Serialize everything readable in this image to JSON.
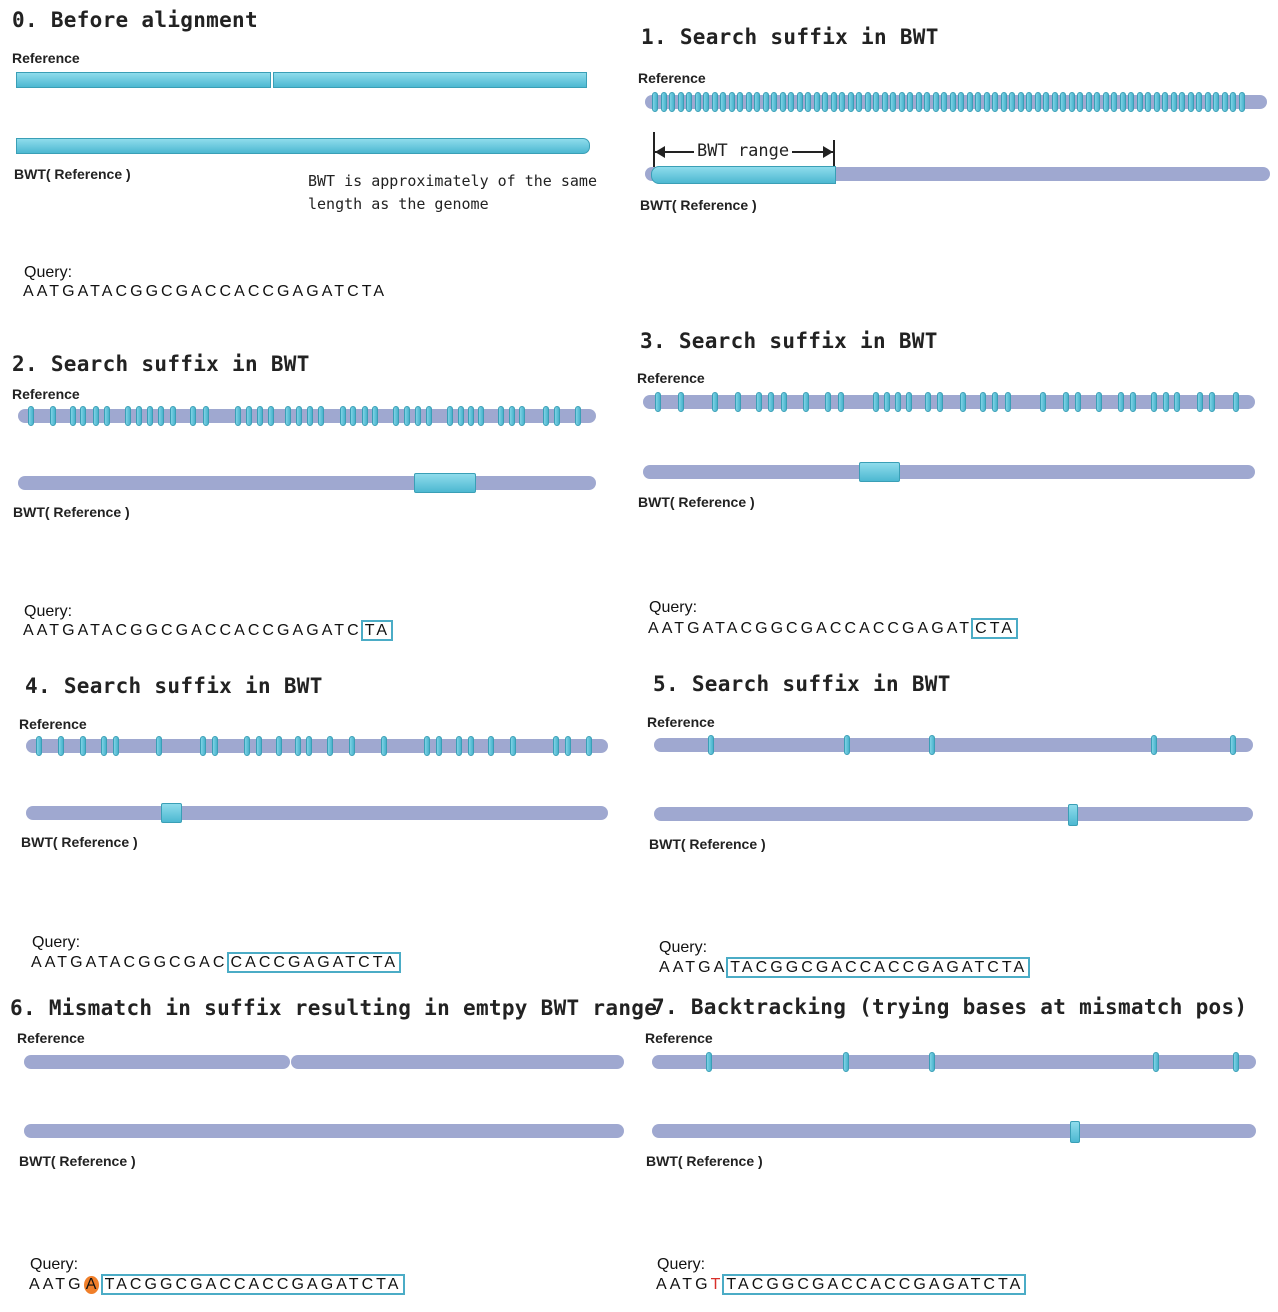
{
  "labels": {
    "reference": "Reference",
    "bwt": "BWT( Reference )",
    "query": "Query:"
  },
  "colors": {
    "bar": "#9fa8d0",
    "cyan": "#4db8d1",
    "box": "#4bacc6",
    "mismatch": "#d8302a",
    "highlight": "#f07f2a"
  },
  "panels": [
    {
      "title": "0. Before alignment",
      "note_line1": "BWT is approximately of the same",
      "note_line2": "length as the genome",
      "query": {
        "prefix": "AATGATACGGCGACCACCGAGATCTA",
        "mismatch": "",
        "matched": ""
      }
    },
    {
      "title": "1. Search suffix in BWT",
      "range_label": "BWT range",
      "query": null
    },
    {
      "title": "2. Search suffix in BWT",
      "query": {
        "prefix": "AATGATACGGCGACCACCGAGATC",
        "mismatch": "",
        "matched": "TA"
      }
    },
    {
      "title": "3. Search suffix in BWT",
      "query": {
        "prefix": "AATGATACGGCGACCACCGAGAT",
        "mismatch": "",
        "matched": "CTA"
      }
    },
    {
      "title": "4. Search suffix in BWT",
      "query": {
        "prefix": "AATGATACGGCGAC",
        "mismatch": "",
        "matched": "CACCGAGATCTA"
      }
    },
    {
      "title": "5. Search suffix in BWT",
      "query": {
        "prefix": "AATGA",
        "mismatch": "",
        "matched": "TACGGCGACCACCGAGATCTA"
      }
    },
    {
      "title": "6. Mismatch in suffix resulting in emtpy BWT range",
      "query": {
        "prefix": "AATG",
        "mismatch": "A",
        "matched": "TACGGCGACCACCGAGATCTA"
      }
    },
    {
      "title": "7. Backtracking (trying bases at mismatch pos)",
      "query": {
        "prefix": "AATG",
        "mismatch": "T",
        "matched": "TACGGCGACCACCGAGATCTA"
      }
    }
  ]
}
